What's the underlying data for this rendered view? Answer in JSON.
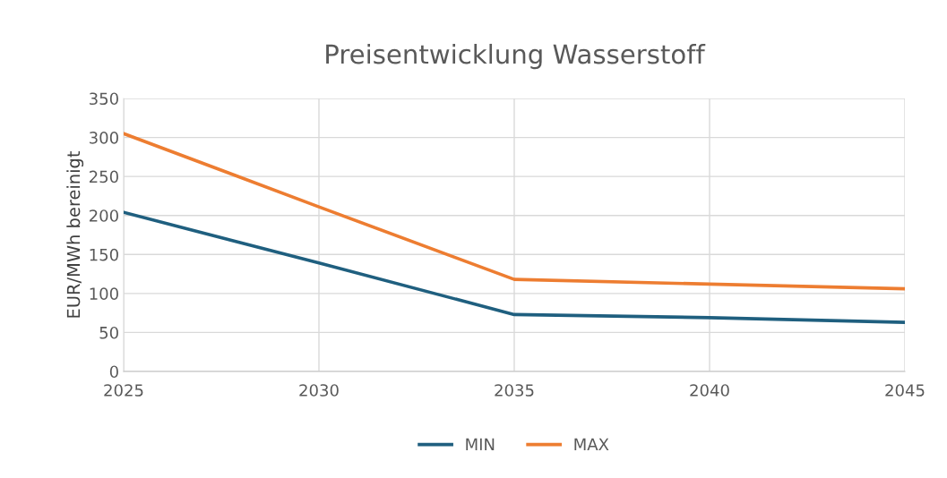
{
  "chart_data": {
    "type": "line",
    "title": "Preisentwicklung Wasserstoff",
    "ylabel": "EUR/MWh bereinigt",
    "x": [
      2025,
      2030,
      2035,
      2040,
      2045
    ],
    "series": [
      {
        "name": "MIN",
        "color": "#1f5f7f",
        "values": [
          204,
          139,
          73,
          69,
          63
        ]
      },
      {
        "name": "MAX",
        "color": "#ed7d31",
        "values": [
          305,
          211,
          118,
          112,
          106
        ]
      }
    ],
    "xlim": [
      2025,
      2045
    ],
    "xticks": [
      2025,
      2030,
      2035,
      2040,
      2045
    ],
    "ylim": [
      0,
      350
    ],
    "yticks": [
      0,
      50,
      100,
      150,
      200,
      250,
      300,
      350
    ],
    "grid": true,
    "legend": "bottom",
    "marker": "none",
    "line_style": "solid"
  }
}
